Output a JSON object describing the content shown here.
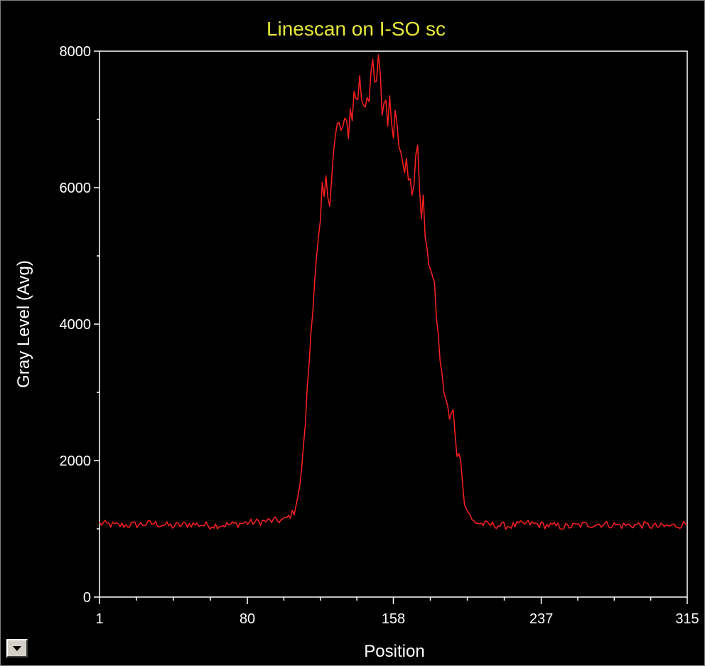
{
  "chart_data": {
    "type": "line",
    "title": "Linescan on I-SO sc",
    "xlabel": "Position",
    "ylabel": "Gray Level (Avg)",
    "xlim": [
      1,
      315
    ],
    "ylim": [
      0,
      8000
    ],
    "x_ticks": [
      1,
      80,
      158,
      237,
      315
    ],
    "y_ticks": [
      0,
      2000,
      4000,
      6000,
      8000
    ],
    "grid": false,
    "line_color": "#ff2020",
    "series": [
      {
        "x": [
          1,
          10,
          20,
          30,
          40,
          50,
          60,
          70,
          80,
          90,
          100,
          105,
          108,
          110,
          112,
          114,
          116,
          118,
          120,
          122,
          124,
          126,
          128,
          130,
          132,
          134,
          136,
          138,
          140,
          142,
          144,
          146,
          148,
          150,
          152,
          154,
          156,
          158,
          160,
          162,
          164,
          166,
          168,
          170,
          172,
          174,
          176,
          178,
          180,
          182,
          184,
          186,
          188,
          190,
          192,
          194,
          196,
          198,
          200,
          205,
          210,
          220,
          230,
          240,
          250,
          260,
          270,
          280,
          290,
          300,
          310,
          315
        ],
        "y": [
          1080,
          1050,
          1060,
          1080,
          1040,
          1070,
          1050,
          1060,
          1090,
          1110,
          1130,
          1250,
          1600,
          2200,
          3000,
          3900,
          4700,
          5200,
          5700,
          5900,
          6100,
          6500,
          6800,
          6850,
          6700,
          7000,
          7200,
          7350,
          7500,
          7300,
          7450,
          7650,
          7400,
          7700,
          7200,
          7300,
          7050,
          7100,
          7000,
          6800,
          6500,
          5950,
          6000,
          6500,
          6100,
          5600,
          5000,
          4850,
          4500,
          3800,
          3200,
          2900,
          2600,
          2700,
          2100,
          2050,
          1350,
          1250,
          1120,
          1070,
          1060,
          1040,
          1080,
          1050,
          1030,
          1060,
          1070,
          1050,
          1060,
          1030,
          1050,
          1080
        ]
      }
    ]
  },
  "controls": {
    "dropdown_icon": "chevron-down-icon"
  }
}
